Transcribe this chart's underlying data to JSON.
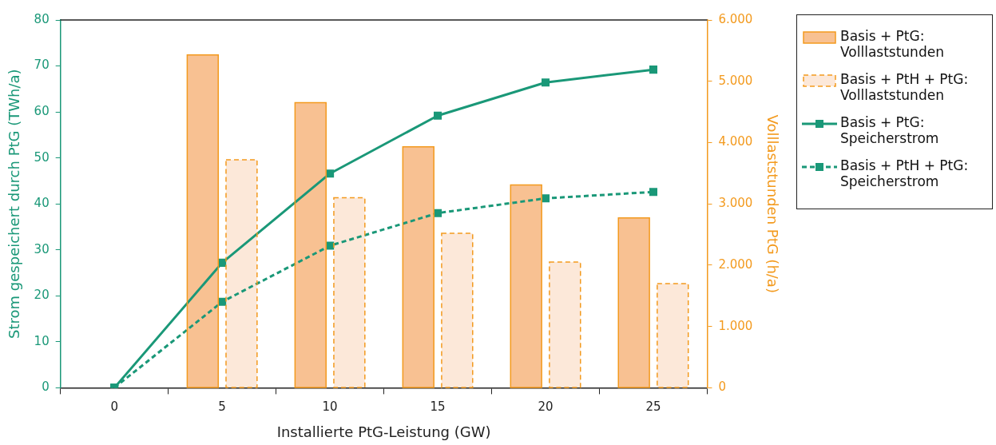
{
  "chart_data": {
    "type": "bar",
    "xlabel": "Installierte PtG-Leistung (GW)",
    "ylabel": "Strom gespeichert durch PtG (TWh/a)",
    "y2label": "Volllaststunden PtG (h/a)",
    "categories": [
      "0",
      "5",
      "10",
      "15",
      "20",
      "25"
    ],
    "series": [
      {
        "name": "Basis + PtG: Volllaststunden",
        "axis": "y2",
        "color": "#f8c192",
        "line_style": "solid",
        "values": [
          null,
          5430,
          4650,
          3930,
          3310,
          2770
        ]
      },
      {
        "name": "Basis + PtH + PtG: Volllaststunden",
        "axis": "y2",
        "color": "#fce8d9",
        "line_style": "dashed",
        "values": [
          null,
          3720,
          3100,
          2520,
          2050,
          1700
        ]
      },
      {
        "name": "Basis + PtG: Speicherstrom",
        "type": "line",
        "axis": "y",
        "color": "#1a9878",
        "line_style": "solid",
        "values": [
          0,
          27.2,
          46.6,
          59.2,
          66.4,
          69.2
        ]
      },
      {
        "name": "Basis + PtH + PtG: Speicherstrom",
        "type": "line",
        "axis": "y",
        "color": "#1a9878",
        "line_style": "dashed",
        "values": [
          0,
          18.7,
          30.9,
          38.0,
          41.2,
          42.6
        ]
      }
    ],
    "ylim": [
      0,
      80
    ],
    "yticks": [
      0,
      10,
      20,
      30,
      40,
      50,
      60,
      70,
      80
    ],
    "y2lim": [
      0,
      6000
    ],
    "y2ticks": [
      {
        "value": 0,
        "label": "0"
      },
      {
        "value": 1000,
        "label": "1.000"
      },
      {
        "value": 2000,
        "label": "2.000"
      },
      {
        "value": 3000,
        "label": "3.000"
      },
      {
        "value": 4000,
        "label": "4.000"
      },
      {
        "value": 5000,
        "label": "5.000"
      },
      {
        "value": 6000,
        "label": "6.000"
      }
    ],
    "marker": "square",
    "grid": false,
    "legend": "right"
  }
}
